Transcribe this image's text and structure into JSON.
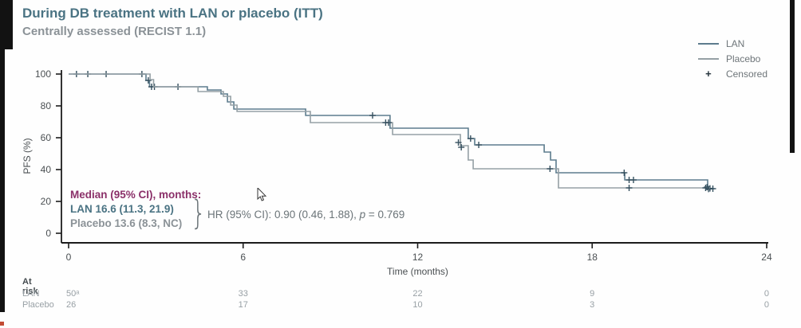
{
  "title": "During DB treatment with LAN or placebo (ITT)",
  "subtitle": "Centrally assessed (RECIST 1.1)",
  "legend": {
    "lan": "LAN",
    "placebo": "Placebo",
    "censored": "Censored"
  },
  "stats": {
    "median_label": "Median (95% CI), months:",
    "lan_median": "LAN 16.6 (11.3, 21.9)",
    "placebo_median": "Placebo 13.6 (8.3, NC)",
    "hr_prefix": "HR (95% CI): 0.90 (0.46, 1.88), ",
    "hr_p": "p",
    "hr_suffix": " = 0.769"
  },
  "colors": {
    "title": "#4a7383",
    "subtitle": "#8b9297",
    "lan_line": "#5d7c8d",
    "placebo_line": "#95a0a5",
    "censor": "#35505f",
    "axis": "#1c1c1c",
    "tick_label": "#4a4f52",
    "median_label": "#8b3069",
    "hr_text": "#6b7478",
    "at_risk_text": "#98a0a5"
  },
  "chart_data": {
    "type": "line",
    "style": "kaplan-meier-step",
    "title": "During DB treatment with LAN or placebo (ITT)",
    "subtitle": "Centrally assessed (RECIST 1.1)",
    "xlabel": "Time (months)",
    "ylabel": "PFS (%)",
    "xlim": [
      0,
      24
    ],
    "ylim": [
      0,
      100
    ],
    "xticks": [
      0,
      6,
      12,
      18,
      24
    ],
    "yticks": [
      0,
      20,
      40,
      60,
      80,
      100
    ],
    "grid": false,
    "legend_position": "top-right",
    "series": [
      {
        "name": "LAN",
        "points": [
          [
            0,
            100
          ],
          [
            2.66,
            100
          ],
          [
            2.66,
            96
          ],
          [
            2.78,
            96
          ],
          [
            2.78,
            92
          ],
          [
            4.77,
            92
          ],
          [
            4.77,
            90
          ],
          [
            5.24,
            90
          ],
          [
            5.24,
            87.5
          ],
          [
            5.46,
            87.5
          ],
          [
            5.46,
            82.5
          ],
          [
            5.68,
            82.5
          ],
          [
            5.68,
            78
          ],
          [
            8.15,
            78
          ],
          [
            8.15,
            74
          ],
          [
            11.05,
            74
          ],
          [
            11.05,
            66
          ],
          [
            13.74,
            66
          ],
          [
            13.74,
            59.5
          ],
          [
            13.96,
            59.5
          ],
          [
            13.96,
            55.5
          ],
          [
            16.35,
            55.5
          ],
          [
            16.35,
            51
          ],
          [
            16.57,
            51
          ],
          [
            16.57,
            46
          ],
          [
            16.76,
            46
          ],
          [
            16.76,
            38
          ],
          [
            19.12,
            38
          ],
          [
            19.12,
            33.5
          ],
          [
            21.97,
            33.5
          ],
          [
            21.97,
            28
          ],
          [
            22.2,
            28
          ]
        ],
        "censors": [
          [
            0.27,
            100
          ],
          [
            0.66,
            100
          ],
          [
            1.29,
            100
          ],
          [
            2.52,
            100
          ],
          [
            2.74,
            96
          ],
          [
            2.85,
            92
          ],
          [
            2.95,
            92
          ],
          [
            3.76,
            92
          ],
          [
            10.45,
            74
          ],
          [
            13.82,
            59.5
          ],
          [
            14.1,
            55.5
          ],
          [
            19.1,
            38
          ],
          [
            19.27,
            33.5
          ],
          [
            19.42,
            33.5
          ],
          [
            21.95,
            29
          ],
          [
            22.05,
            28.2
          ],
          [
            22.15,
            28
          ]
        ]
      },
      {
        "name": "Placebo",
        "points": [
          [
            0,
            100
          ],
          [
            2.8,
            100
          ],
          [
            2.8,
            96.5
          ],
          [
            2.92,
            96.5
          ],
          [
            2.92,
            92
          ],
          [
            4.45,
            92
          ],
          [
            4.45,
            89
          ],
          [
            5.32,
            89
          ],
          [
            5.32,
            86
          ],
          [
            5.57,
            86
          ],
          [
            5.57,
            80.5
          ],
          [
            5.79,
            80.5
          ],
          [
            5.79,
            76.5
          ],
          [
            8.31,
            76.5
          ],
          [
            8.31,
            69.5
          ],
          [
            11.14,
            69.5
          ],
          [
            11.14,
            62
          ],
          [
            13.47,
            62
          ],
          [
            13.47,
            55
          ],
          [
            13.74,
            55
          ],
          [
            13.74,
            46
          ],
          [
            13.91,
            46
          ],
          [
            13.91,
            40.5
          ],
          [
            16.84,
            40.5
          ],
          [
            16.84,
            28.5
          ],
          [
            22.05,
            28.5
          ]
        ],
        "censors": [
          [
            10.9,
            69.5
          ],
          [
            11.0,
            69.5
          ],
          [
            13.4,
            57
          ],
          [
            13.5,
            54
          ],
          [
            16.55,
            40.5
          ],
          [
            19.27,
            28.5
          ],
          [
            21.9,
            28.5
          ],
          [
            22.0,
            27.8
          ]
        ]
      }
    ],
    "annotations": {
      "median_label": "Median (95% CI), months:",
      "lan_median": "LAN 16.6 (11.3, 21.9)",
      "placebo_median": "Placebo 13.6 (8.3, NC)",
      "hr": "HR (95% CI): 0.90 (0.46, 1.88), p = 0.769"
    }
  },
  "at_risk": {
    "header": "At risk",
    "months": [
      0,
      6,
      12,
      18,
      24
    ],
    "rows": [
      {
        "label": "LAN",
        "values": [
          "50ᵃ",
          "33",
          "22",
          "9",
          "0"
        ]
      },
      {
        "label": "Placebo",
        "values": [
          "26",
          "17",
          "10",
          "3",
          "0"
        ]
      }
    ]
  }
}
